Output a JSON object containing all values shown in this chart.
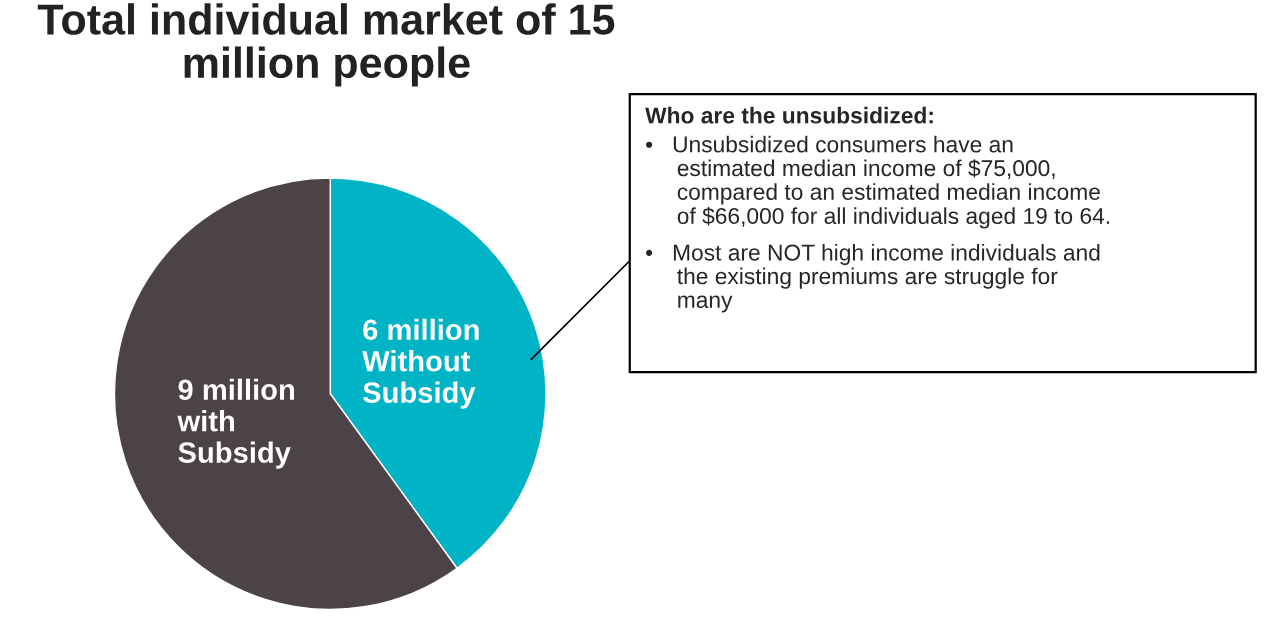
{
  "chart_data": {
    "type": "pie",
    "title": "Total individual market of 15\nmillion people",
    "categories": [
      "6 million\nWithout\nSubsidy",
      "9 million\nwith\nSubsidy"
    ],
    "values": [
      6,
      9
    ],
    "colors": [
      "#00b4c6",
      "#4b4348"
    ],
    "annotations": [
      "Who are the unsubsidized:",
      "•   Unsubsidized consumers have an\n     estimated median income of $75,000,\n     compared to an estimated median income\n     of $66,000 for all individuals aged 19 to 64.",
      "•   Most are NOT high income individuals and\n     the existing premiums are struggle for\n     many"
    ]
  }
}
